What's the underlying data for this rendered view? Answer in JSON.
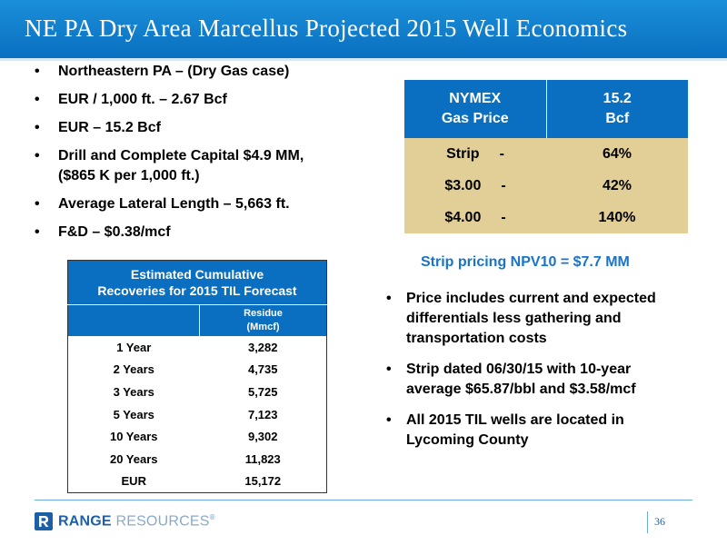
{
  "slide": {
    "title": "NE PA Dry Area Marcellus Projected 2015 Well Economics",
    "page_number": "36"
  },
  "left_bullets": [
    {
      "line1": "Northeastern PA – (Dry Gas case)",
      "line2": ""
    },
    {
      "line1": "EUR / 1,000 ft. – 2.67 Bcf",
      "line2": ""
    },
    {
      "line1": "EUR – 15.2 Bcf",
      "line2": ""
    },
    {
      "line1": "Drill and Complete Capital $4.9 MM,",
      "line2": "($865 K per 1,000 ft.)"
    },
    {
      "line1": "Average Lateral Length – 5,663 ft.",
      "line2": ""
    },
    {
      "line1": "F&D – $0.38/mcf",
      "line2": ""
    }
  ],
  "bullet_glyph": "•",
  "price_table": {
    "header_left_1": "NYMEX",
    "header_left_2": "Gas Price",
    "header_right_1": "15.2",
    "header_right_2": "Bcf",
    "rows": [
      {
        "price": "Strip",
        "dash": "-",
        "value": "64%"
      },
      {
        "price": "$3.00",
        "dash": "-",
        "value": "42%"
      },
      {
        "price": "$4.00",
        "dash": "-",
        "value": "140%"
      }
    ]
  },
  "npv_text": "Strip pricing NPV10 = $7.7 MM",
  "right_bullets": [
    {
      "line1": "Price includes current and expected",
      "line2": "differentials less gathering and",
      "line3": "transportation costs"
    },
    {
      "line1": "Strip dated 06/30/15 with 10-year",
      "line2": "average $65.87/bbl and $3.58/mcf",
      "line3": ""
    },
    {
      "line1": "All 2015 TIL wells are located in",
      "line2": "Lycoming County",
      "line3": ""
    }
  ],
  "recovery_table": {
    "caption_1": "Estimated Cumulative",
    "caption_2": "Recoveries for 2015 TIL Forecast",
    "col_header_1": "Residue",
    "col_header_2": "(Mmcf)",
    "rows": [
      {
        "period": "1 Year",
        "value": "3,282"
      },
      {
        "period": "2 Years",
        "value": "4,735"
      },
      {
        "period": "3 Years",
        "value": "5,725"
      },
      {
        "period": "5 Years",
        "value": "7,123"
      },
      {
        "period": "10 Years",
        "value": "9,302"
      },
      {
        "period": "20 Years",
        "value": "11,823"
      },
      {
        "period": "EUR",
        "value": "15,172"
      }
    ]
  },
  "logo": {
    "text_bold": "RANGE",
    "text_light": "RESOURCES",
    "mark": "®",
    "icon": "range-r-logo-icon",
    "color": "#1c5fa6"
  },
  "colors": {
    "title_bar": "#0a6fc0",
    "table_header": "#0a6fc0",
    "table_body_tan": "#e2cf97",
    "npv_text": "#1a73c6"
  }
}
